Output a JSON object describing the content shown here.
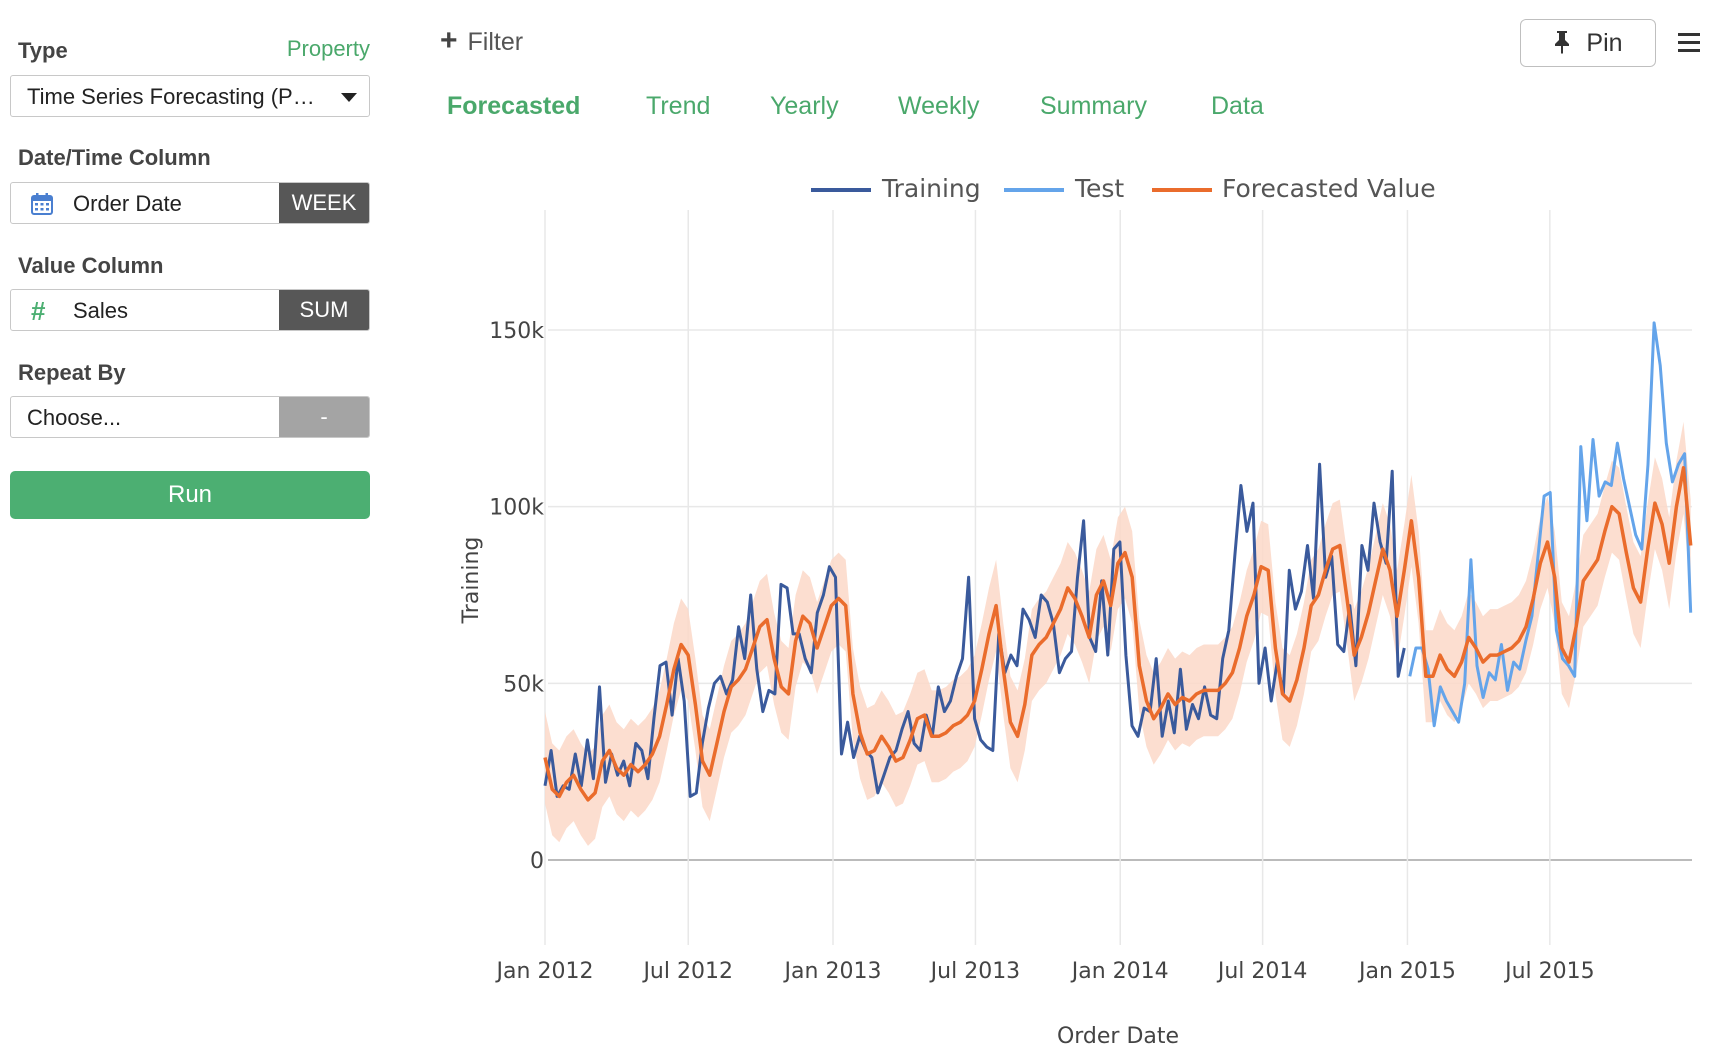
{
  "sidebar": {
    "type_label": "Type",
    "property_link": "Property",
    "type_value": "Time Series Forecasting (P…",
    "date_label": "Date/Time Column",
    "date_value": "Order Date",
    "date_unit": "WEEK",
    "value_label": "Value Column",
    "value_value": "Sales",
    "value_agg": "SUM",
    "repeat_label": "Repeat By",
    "repeat_value": "Choose...",
    "repeat_addon": "-",
    "run_label": "Run"
  },
  "toolbar": {
    "filter_label": "Filter",
    "pin_label": "Pin"
  },
  "tabs": [
    {
      "label": "Forecasted",
      "active": true
    },
    {
      "label": "Trend",
      "active": false
    },
    {
      "label": "Yearly",
      "active": false
    },
    {
      "label": "Weekly",
      "active": false
    },
    {
      "label": "Summary",
      "active": false
    },
    {
      "label": "Data",
      "active": false
    }
  ],
  "colors": {
    "accent": "#4aa86b",
    "training": "#3a5a9c",
    "test": "#64a4ea",
    "forecast": "#ea6c2c",
    "band": "#fbd8c8"
  },
  "chart_data": {
    "type": "line",
    "xlabel": "Order Date",
    "ylabel": "Training",
    "x_ticks": [
      "Jan 2012",
      "Jul 2012",
      "Jan 2013",
      "Jul 2013",
      "Jan 2014",
      "Jul 2014",
      "Jan 2015",
      "Jul 2015"
    ],
    "y_ticks": [
      {
        "v": 0,
        "label": "0"
      },
      {
        "v": 50000,
        "label": "50k"
      },
      {
        "v": 100000,
        "label": "100k"
      },
      {
        "v": 150000,
        "label": "150k"
      }
    ],
    "ylim": [
      -20000,
      180000
    ],
    "xlim": [
      "2012-01-01",
      "2016-01-01"
    ],
    "grid": true,
    "legend_position": "top-center",
    "series": [
      {
        "name": "Training",
        "x_start": "2012-01-01",
        "x_end": "2014-12-28",
        "values": [
          21000,
          31000,
          18000,
          21000,
          20000,
          30000,
          21000,
          34000,
          23000,
          49000,
          22000,
          30000,
          24000,
          28000,
          21000,
          33000,
          31000,
          23000,
          40000,
          55000,
          56000,
          41000,
          57000,
          45000,
          18000,
          19000,
          33000,
          43000,
          50000,
          52000,
          47000,
          51000,
          66000,
          57000,
          75000,
          54000,
          42000,
          48000,
          47000,
          78000,
          77000,
          64000,
          64000,
          57000,
          53000,
          70000,
          75000,
          83000,
          80000,
          30000,
          39000,
          29000,
          35000,
          31000,
          29000,
          19000,
          24000,
          29000,
          31000,
          37000,
          42000,
          33000,
          31000,
          41000,
          35000,
          49000,
          42000,
          45000,
          52000,
          57000,
          80000,
          40000,
          34000,
          32000,
          31000,
          64000,
          53000,
          58000,
          55000,
          71000,
          68000,
          63000,
          75000,
          73000,
          67000,
          53000,
          57000,
          59000,
          80000,
          96000,
          63000,
          59000,
          79000,
          58000,
          88000,
          90000,
          58000,
          38000,
          35000,
          43000,
          42000,
          57000,
          35000,
          45000,
          36000,
          54000,
          37000,
          44000,
          40000,
          49000,
          41000,
          40000,
          57000,
          65000,
          86000,
          106000,
          93000,
          101000,
          50000,
          60000,
          45000,
          56000,
          47000,
          82000,
          71000,
          76000,
          89000,
          74000,
          112000,
          80000,
          86000,
          61000,
          59000,
          72000,
          55000,
          89000,
          82000,
          101000,
          90000,
          84000,
          110000,
          52000,
          60000
        ]
      },
      {
        "name": "Test",
        "x_start": "2015-01-04",
        "x_end": "2015-12-27",
        "values": [
          52000,
          60000,
          60000,
          54000,
          38000,
          49000,
          45000,
          42000,
          39000,
          50000,
          85000,
          55000,
          46000,
          53000,
          51000,
          61000,
          48000,
          56000,
          54000,
          62000,
          69000,
          86000,
          103000,
          104000,
          65000,
          57000,
          55000,
          52000,
          117000,
          96000,
          119000,
          103000,
          107000,
          106000,
          118000,
          108000,
          100000,
          92000,
          88000,
          112000,
          152000,
          140000,
          118000,
          107000,
          112000,
          115000,
          70000
        ]
      },
      {
        "name": "Forecasted Value",
        "x_start": "2012-01-01",
        "x_end": "2015-12-27",
        "values": [
          29000,
          20000,
          18000,
          22000,
          24000,
          20000,
          17000,
          19000,
          28000,
          31000,
          26000,
          24000,
          27000,
          25000,
          27000,
          30000,
          35000,
          44000,
          54000,
          61000,
          58000,
          44000,
          28000,
          24000,
          33000,
          42000,
          49000,
          51000,
          54000,
          60000,
          66000,
          68000,
          57000,
          49000,
          47000,
          62000,
          69000,
          67000,
          60000,
          66000,
          72000,
          74000,
          72000,
          47000,
          36000,
          30000,
          31000,
          35000,
          32000,
          28000,
          29000,
          34000,
          40000,
          41000,
          35000,
          35000,
          36000,
          38000,
          39000,
          41000,
          45000,
          54000,
          64000,
          72000,
          54000,
          39000,
          35000,
          44000,
          58000,
          61000,
          63000,
          67000,
          71000,
          77000,
          74000,
          69000,
          63000,
          75000,
          79000,
          72000,
          84000,
          87000,
          80000,
          55000,
          45000,
          40000,
          43000,
          47000,
          44000,
          46000,
          45000,
          47000,
          48000,
          48000,
          48000,
          50000,
          53000,
          60000,
          69000,
          75000,
          83000,
          82000,
          60000,
          47000,
          45000,
          51000,
          60000,
          72000,
          75000,
          82000,
          88000,
          89000,
          74000,
          58000,
          63000,
          70000,
          79000,
          88000,
          82000,
          69000,
          82000,
          96000,
          80000,
          52000,
          52000,
          58000,
          54000,
          52000,
          56000,
          63000,
          60000,
          56000,
          58000,
          58000,
          59000,
          60000,
          62000,
          66000,
          74000,
          84000,
          90000,
          80000,
          60000,
          56000,
          66000,
          79000,
          82000,
          85000,
          93000,
          100000,
          98000,
          87000,
          77000,
          73000,
          88000,
          101000,
          95000,
          84000,
          100000,
          111000,
          89000
        ]
      },
      {
        "name": "band_upper",
        "x_start": "2012-01-01",
        "x_end": "2015-12-27",
        "values": [
          42000,
          33000,
          31000,
          35000,
          37000,
          33000,
          30000,
          32000,
          41000,
          44000,
          39000,
          37000,
          40000,
          38000,
          40000,
          43000,
          48000,
          57000,
          67000,
          74000,
          71000,
          57000,
          41000,
          37000,
          46000,
          55000,
          62000,
          64000,
          67000,
          73000,
          79000,
          81000,
          70000,
          62000,
          60000,
          75000,
          82000,
          80000,
          73000,
          79000,
          85000,
          87000,
          85000,
          60000,
          49000,
          43000,
          44000,
          48000,
          45000,
          41000,
          42000,
          47000,
          53000,
          54000,
          48000,
          48000,
          49000,
          51000,
          52000,
          54000,
          58000,
          67000,
          77000,
          85000,
          67000,
          52000,
          48000,
          57000,
          71000,
          74000,
          76000,
          80000,
          84000,
          90000,
          87000,
          82000,
          76000,
          88000,
          92000,
          85000,
          97000,
          100000,
          93000,
          68000,
          58000,
          53000,
          56000,
          60000,
          57000,
          59000,
          58000,
          60000,
          61000,
          61000,
          61000,
          63000,
          66000,
          73000,
          82000,
          88000,
          96000,
          95000,
          73000,
          60000,
          58000,
          64000,
          73000,
          85000,
          88000,
          95000,
          101000,
          102000,
          87000,
          71000,
          76000,
          83000,
          92000,
          101000,
          95000,
          82000,
          95000,
          109000,
          93000,
          65000,
          65000,
          71000,
          67000,
          65000,
          69000,
          76000,
          73000,
          69000,
          71000,
          71000,
          72000,
          73000,
          75000,
          79000,
          87000,
          97000,
          103000,
          93000,
          73000,
          69000,
          79000,
          92000,
          95000,
          98000,
          106000,
          113000,
          111000,
          100000,
          90000,
          86000,
          101000,
          114000,
          108000,
          97000,
          113000,
          124000,
          102000
        ]
      },
      {
        "name": "band_lower",
        "x_start": "2012-01-01",
        "x_end": "2015-12-27",
        "values": [
          16000,
          7000,
          5000,
          9000,
          11000,
          7000,
          4000,
          6000,
          15000,
          18000,
          13000,
          11000,
          14000,
          12000,
          14000,
          17000,
          22000,
          31000,
          41000,
          48000,
          45000,
          31000,
          15000,
          11000,
          20000,
          29000,
          36000,
          38000,
          41000,
          47000,
          53000,
          55000,
          44000,
          36000,
          34000,
          49000,
          56000,
          54000,
          47000,
          53000,
          59000,
          61000,
          59000,
          34000,
          23000,
          17000,
          18000,
          22000,
          19000,
          15000,
          16000,
          21000,
          27000,
          28000,
          22000,
          22000,
          23000,
          25000,
          26000,
          28000,
          32000,
          41000,
          51000,
          59000,
          41000,
          26000,
          22000,
          31000,
          45000,
          48000,
          50000,
          54000,
          58000,
          64000,
          61000,
          56000,
          50000,
          62000,
          66000,
          59000,
          71000,
          74000,
          67000,
          42000,
          32000,
          27000,
          30000,
          34000,
          31000,
          33000,
          32000,
          34000,
          35000,
          35000,
          35000,
          37000,
          40000,
          47000,
          56000,
          62000,
          70000,
          69000,
          47000,
          34000,
          32000,
          38000,
          47000,
          59000,
          62000,
          69000,
          75000,
          76000,
          61000,
          45000,
          50000,
          57000,
          66000,
          75000,
          69000,
          56000,
          69000,
          83000,
          67000,
          39000,
          39000,
          45000,
          41000,
          39000,
          43000,
          50000,
          47000,
          43000,
          45000,
          45000,
          46000,
          47000,
          49000,
          53000,
          61000,
          71000,
          77000,
          67000,
          47000,
          43000,
          53000,
          66000,
          69000,
          72000,
          80000,
          87000,
          85000,
          74000,
          64000,
          60000,
          75000,
          88000,
          82000,
          71000,
          87000,
          98000,
          76000
        ]
      }
    ]
  }
}
